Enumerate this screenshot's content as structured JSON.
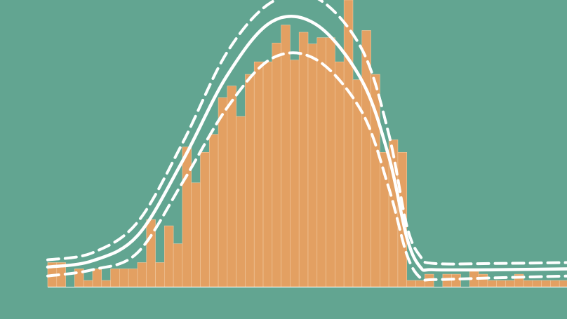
{
  "chart_data": {
    "type": "bar",
    "title": "",
    "xlabel": "",
    "ylabel": "",
    "grid": false,
    "legend": "none",
    "xlim": [
      0,
      58
    ],
    "ylim": [
      0,
      32
    ],
    "bar_color": "#e3a062",
    "background_color": "#62a591",
    "line_color": "#ffffff",
    "values": [
      2.7,
      2.7,
      0,
      2.0,
      0.7,
      2.0,
      0.7,
      2.0,
      2.0,
      2.0,
      2.7,
      7.5,
      2.7,
      6.8,
      4.8,
      15.6,
      11.6,
      15.0,
      17.0,
      21.1,
      22.4,
      19.0,
      23.7,
      25.1,
      25.1,
      27.2,
      29.2,
      25.3,
      28.4,
      27.1,
      27.8,
      27.8,
      25.1,
      32.0,
      23.1,
      28.6,
      23.7,
      15.0,
      16.4,
      15.0,
      0.7,
      0.7,
      1.4,
      0,
      1.4,
      1.4,
      0,
      2.0,
      1.4,
      0.7,
      0.7,
      0.7,
      1.4,
      0.7,
      0.7,
      0.7,
      0.7,
      0.7
    ],
    "series": [
      {
        "style": "solid",
        "x": [
          0,
          5,
          10,
          15,
          20,
          25,
          30,
          35,
          38,
          40,
          41.5,
          43,
          50,
          58
        ],
        "y": [
          2.2,
          2.9,
          5.7,
          14.0,
          23.6,
          29.6,
          29.2,
          23.0,
          14.5,
          5.5,
          2.2,
          1.9,
          1.9,
          2.0
        ]
      },
      {
        "style": "dashed",
        "x": [
          0,
          5,
          10,
          15,
          20,
          25,
          30,
          35,
          38,
          40,
          41.5,
          43,
          50,
          58
        ],
        "y": [
          3.0,
          3.8,
          7.2,
          16.0,
          26.2,
          31.8,
          32.2,
          26.5,
          17.0,
          6.8,
          3.4,
          2.6,
          2.6,
          2.7
        ]
      },
      {
        "style": "dashed",
        "x": [
          0,
          5,
          10,
          15,
          20,
          25,
          30,
          35,
          38,
          40,
          41.5,
          43,
          50,
          58
        ],
        "y": [
          1.2,
          1.9,
          3.8,
          11.6,
          20.0,
          25.5,
          25.3,
          19.5,
          11.0,
          3.6,
          1.0,
          0.8,
          1.0,
          1.2
        ]
      }
    ]
  }
}
